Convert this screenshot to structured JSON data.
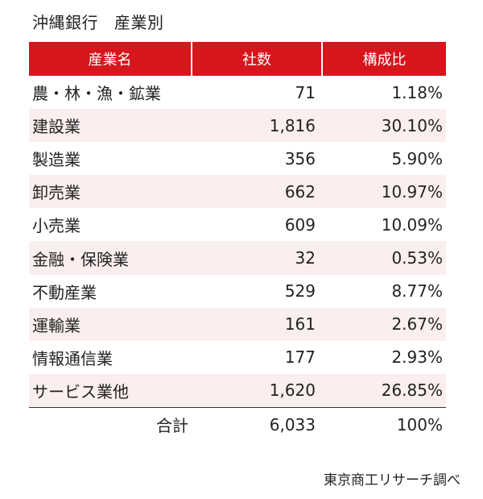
{
  "header": {
    "bank": "沖縄銀行",
    "subtitle": "産業別"
  },
  "chart_data": {
    "type": "table",
    "columns": [
      "産業名",
      "社数",
      "構成比"
    ],
    "rows": [
      {
        "industry": "農・林・漁・鉱業",
        "count": "71",
        "share": "1.18%"
      },
      {
        "industry": "建設業",
        "count": "1,816",
        "share": "30.10%"
      },
      {
        "industry": "製造業",
        "count": "356",
        "share": "5.90%"
      },
      {
        "industry": "卸売業",
        "count": "662",
        "share": "10.97%"
      },
      {
        "industry": "小売業",
        "count": "609",
        "share": "10.09%"
      },
      {
        "industry": "金融・保険業",
        "count": "32",
        "share": "0.53%"
      },
      {
        "industry": "不動産業",
        "count": "529",
        "share": "8.77%"
      },
      {
        "industry": "運輸業",
        "count": "161",
        "share": "2.67%"
      },
      {
        "industry": "情報通信業",
        "count": "177",
        "share": "2.93%"
      },
      {
        "industry": "サービス業他",
        "count": "1,620",
        "share": "26.85%"
      }
    ],
    "total": {
      "label": "合計",
      "count": "6,033",
      "share": "100%"
    }
  },
  "colors": {
    "header_bg": "#d7151d",
    "row_stripe": "#fbeeee"
  },
  "source": "東京商工リサーチ調べ"
}
